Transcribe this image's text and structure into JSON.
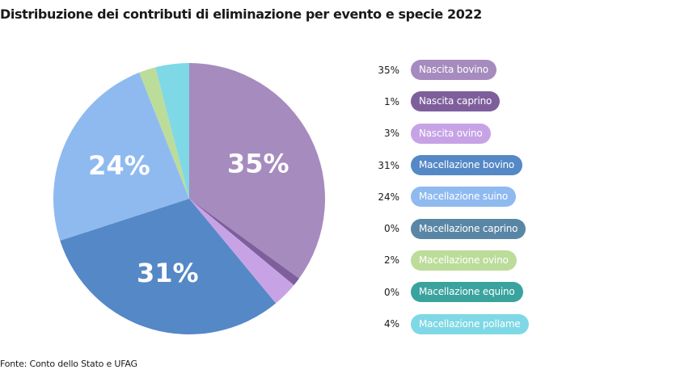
{
  "title": "Distribuzione dei contributi di eliminazione per evento e specie 2022",
  "source": "Fonte: Conto dello Stato e UFAG",
  "chart_data": {
    "type": "pie",
    "title": "Distribuzione dei contributi di eliminazione per evento e specie 2022",
    "start_angle_deg": 0,
    "direction": "clockwise",
    "slices": [
      {
        "label": "Nascita bovino",
        "value": 35,
        "value_label": "35%",
        "color": "#a68bbf",
        "show_on_slice": true
      },
      {
        "label": "Nascita caprino",
        "value": 1,
        "value_label": "1%",
        "color": "#7e5f9c",
        "show_on_slice": false
      },
      {
        "label": "Nascita ovino",
        "value": 3,
        "value_label": "3%",
        "color": "#c7a3e6",
        "show_on_slice": false
      },
      {
        "label": "Macellazione bovino",
        "value": 31,
        "value_label": "31%",
        "color": "#5588c6",
        "show_on_slice": true
      },
      {
        "label": "Macellazione suino",
        "value": 24,
        "value_label": "24%",
        "color": "#8fbaf0",
        "show_on_slice": true
      },
      {
        "label": "Macellazione caprino",
        "value": 0,
        "value_label": "0%",
        "color": "#5a86a6",
        "show_on_slice": false
      },
      {
        "label": "Macellazione ovino",
        "value": 2,
        "value_label": "2%",
        "color": "#bcdc9a",
        "show_on_slice": false
      },
      {
        "label": "Macellazione equino",
        "value": 0,
        "value_label": "0%",
        "color": "#3ba39e",
        "show_on_slice": false
      },
      {
        "label": "Macellazione pollame",
        "value": 4,
        "value_label": "4%",
        "color": "#7fd8e6",
        "show_on_slice": false
      }
    ],
    "legend_placement": "right"
  }
}
